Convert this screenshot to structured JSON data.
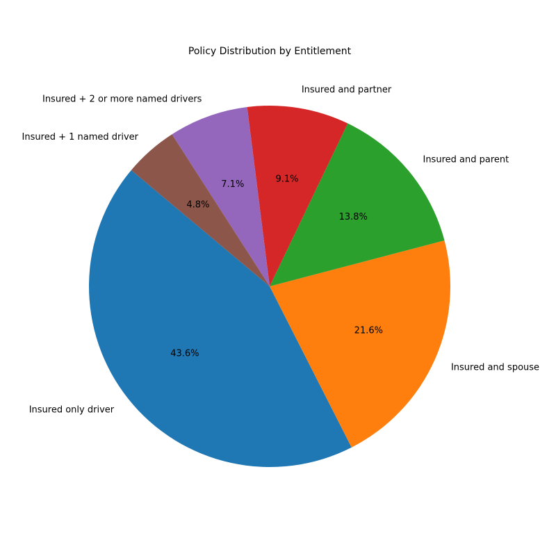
{
  "chart_data": {
    "type": "pie",
    "title": "Policy Distribution by Entitlement",
    "categories": [
      "Insured only driver",
      "Insured and spouse",
      "Insured and parent",
      "Insured and partner",
      "Insured + 2 or more named drivers",
      "Insured + 1 named driver"
    ],
    "values": [
      43.6,
      21.6,
      13.8,
      9.1,
      7.1,
      4.8
    ],
    "percent_labels": [
      "43.6%",
      "21.6%",
      "13.8%",
      "9.1%",
      "7.1%",
      "4.8%"
    ],
    "colors": [
      "#1f77b4",
      "#ff7f0e",
      "#2ca02c",
      "#d62728",
      "#9467bd",
      "#8c564b"
    ],
    "start_angle_deg": 140,
    "direction": "counterclockwise",
    "legend": "none"
  }
}
